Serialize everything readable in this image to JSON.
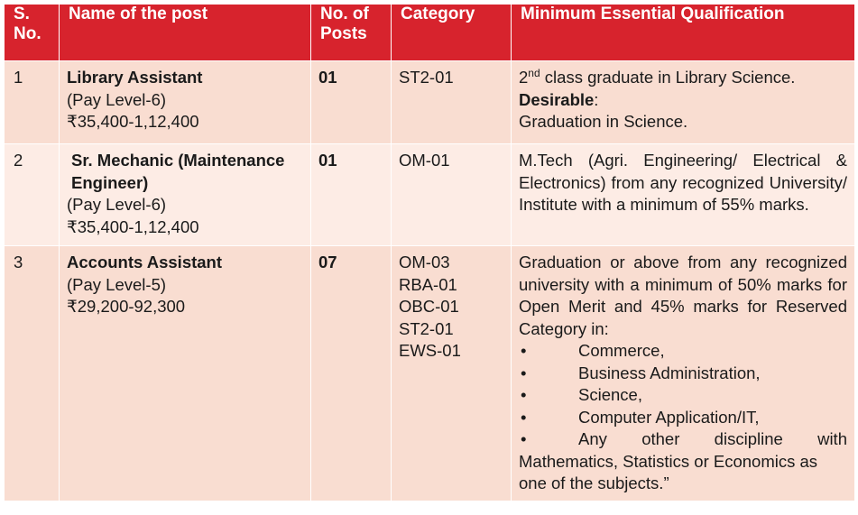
{
  "header": {
    "sno": "S. No.",
    "post": "Name of the post",
    "posts": "No. of Posts",
    "category": "Category",
    "qualification": "Minimum Essential Qualification"
  },
  "rows": [
    {
      "sno": "1",
      "post_name": "Library Assistant",
      "pay_level": "(Pay Level-6)",
      "pay_scale": "₹35,400-1,12,400",
      "posts": "01",
      "category": "ST2-01",
      "q_ord": "2",
      "q_sup": "nd",
      "q_rest": " class graduate in Library Science.",
      "desirable_label": "Desirable",
      "desirable_colon": ":",
      "desirable_text": "Graduation in Science."
    },
    {
      "sno": "2",
      "post_name": "Sr. Mechanic (Maintenance Engineer)",
      "pay_level": "(Pay Level-6)",
      "pay_scale": "₹35,400-1,12,400",
      "posts": "01",
      "category": "OM-01",
      "qualification": "M.Tech (Agri. Engineering/ Electrical & Electronics) from any recognized University/ Institute with a minimum of 55% marks."
    },
    {
      "sno": "3",
      "post_name": "Accounts Assistant",
      "pay_level": "(Pay Level-5)",
      "pay_scale": "₹29,200-92,300",
      "posts": "07",
      "categories": [
        "OM-03",
        "RBA-01",
        "OBC-01",
        "ST2-01",
        "EWS-01"
      ],
      "qualification_intro": "Graduation or above from any recognized university with a minimum of 50% marks for Open Merit and 45% marks for Reserved Category in:",
      "bullet": "•",
      "disciplines": [
        "Commerce,",
        "Business Administration,",
        "Science,",
        "Computer Application/IT,",
        "Any other discipline with"
      ],
      "qualification_outro": "Mathematics, Statistics or Economics as one of the subjects.”"
    }
  ]
}
